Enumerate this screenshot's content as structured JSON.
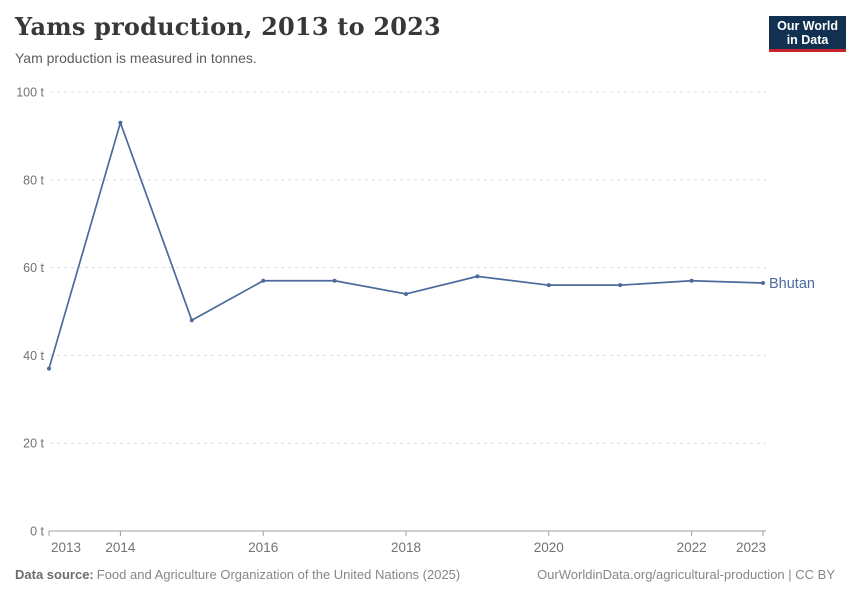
{
  "header": {
    "title": "Yams production, 2013 to 2023",
    "subtitle": "Yam production is measured in tonnes.",
    "logo": {
      "line1": "Our World",
      "line2": "in Data"
    }
  },
  "chart_data": {
    "type": "line",
    "title": "Yams production, 2013 to 2023",
    "subtitle": "Yam production is measured in tonnes.",
    "unit": "t",
    "x": [
      2013,
      2014,
      2015,
      2016,
      2017,
      2018,
      2019,
      2020,
      2021,
      2022,
      2023
    ],
    "series": [
      {
        "name": "Bhutan",
        "color": "#4C6A9C",
        "values": [
          37,
          93,
          48,
          57,
          57,
          54,
          58,
          56,
          56,
          57,
          56.5
        ]
      }
    ],
    "ylim": [
      0,
      100
    ],
    "yticks": [
      0,
      20,
      40,
      60,
      80,
      100
    ],
    "ytick_suffix": " t",
    "xticks_labeled": [
      2013,
      2014,
      2016,
      2018,
      2020,
      2022,
      2023
    ],
    "grid": "horizontal-dashed",
    "legend_position": "inline-right-of-last-point"
  },
  "footer": {
    "source_label": "Data source:",
    "source": "Food and Agriculture Organization of the United Nations (2025)",
    "link": "OurWorldinData.org/agricultural-production | CC BY"
  },
  "colors": {
    "line": "#4C6A9C",
    "grid": "#dcdcdc",
    "axis": "#a1a1a1",
    "tick_label": "#737373",
    "title": "#383838",
    "subtitle": "#5e5e5e",
    "footer": "#878787",
    "logo_bg": "#12304f",
    "logo_red": "#c8232c"
  }
}
